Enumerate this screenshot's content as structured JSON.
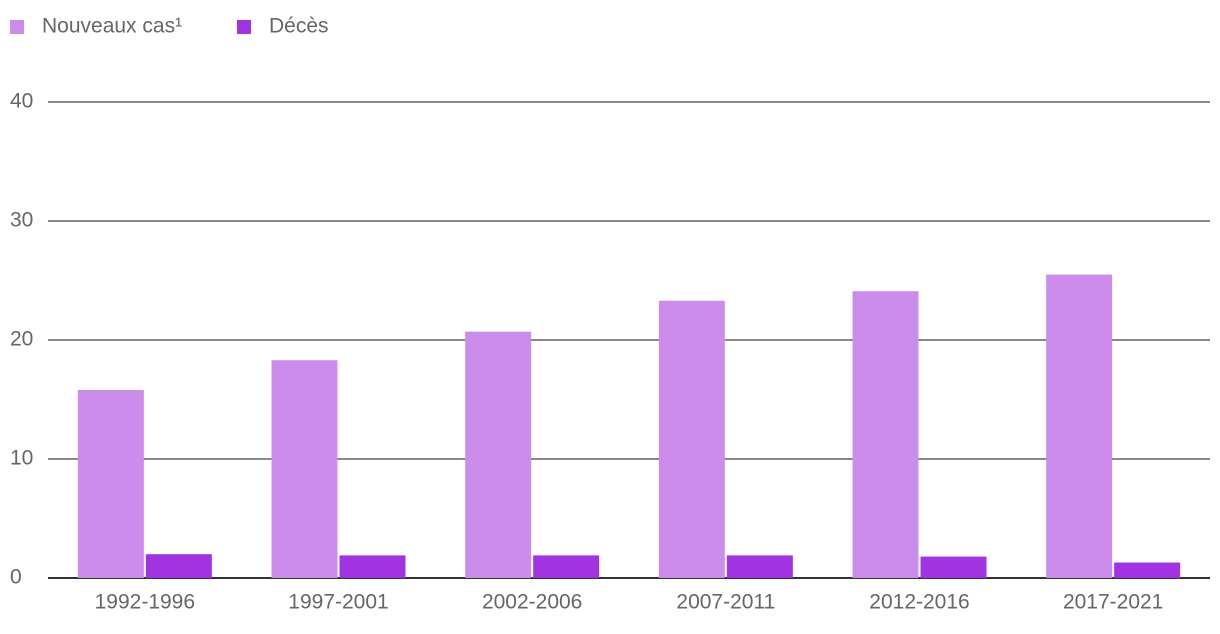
{
  "chart_data": {
    "type": "bar",
    "categories": [
      "1992-1996",
      "1997-2001",
      "2002-2006",
      "2007-2011",
      "2012-2016",
      "2017-2021"
    ],
    "series": [
      {
        "name": "Nouveaux cas¹",
        "color": "#cb8cec",
        "values": [
          15.8,
          18.3,
          20.7,
          23.3,
          24.1,
          25.5
        ]
      },
      {
        "name": "Décès",
        "color": "#a233e0",
        "values": [
          2.0,
          1.9,
          1.9,
          1.9,
          1.8,
          1.3
        ]
      }
    ],
    "ylim": [
      0,
      40
    ],
    "yticks": [
      0,
      10,
      20,
      30,
      40
    ],
    "grid": true,
    "legend": "top-left"
  }
}
